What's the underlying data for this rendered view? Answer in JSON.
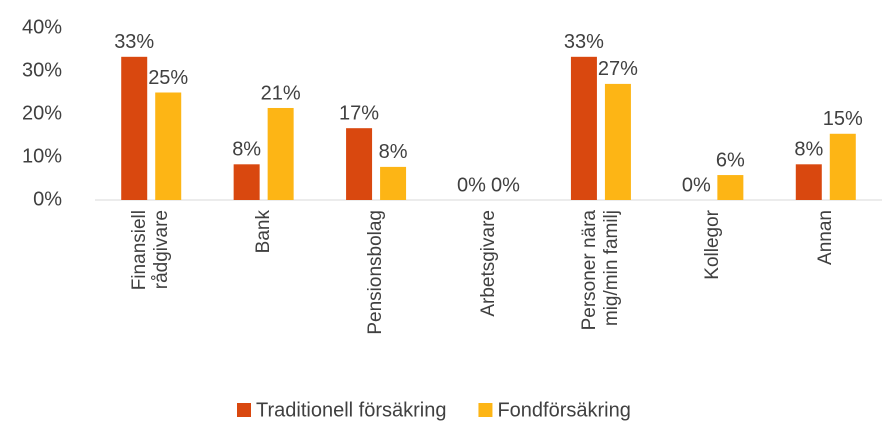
{
  "chart_data": {
    "type": "bar",
    "categories": [
      "Finansiell rådgivare",
      "Bank",
      "Pensionsbolag",
      "Arbetsgivare",
      "Personer nära mig/min familj",
      "Kollegor",
      "Annan"
    ],
    "series": [
      {
        "name": "Traditionell försäkring",
        "color": "#d9480f",
        "values": [
          33.3,
          8.3,
          16.7,
          0,
          33.3,
          0,
          8.3
        ],
        "value_labels": [
          "33%",
          "8%",
          "17%",
          "0%",
          "33%",
          "0%",
          "8%"
        ]
      },
      {
        "name": "Fondförsäkring",
        "color": "#fdb515",
        "values": [
          25,
          21.4,
          7.7,
          0,
          27,
          5.8,
          15.4
        ],
        "value_labels": [
          "25%",
          "21%",
          "8%",
          "0%",
          "27%",
          "6%",
          "15%"
        ]
      }
    ],
    "ylim": [
      0,
      40
    ],
    "yticks": [
      {
        "value": 0,
        "label": "0%"
      },
      {
        "value": 10,
        "label": "10%"
      },
      {
        "value": 20,
        "label": "20%"
      },
      {
        "value": 30,
        "label": "30%"
      },
      {
        "value": 40,
        "label": "40%"
      }
    ],
    "grid": false,
    "legend": "bottom"
  }
}
